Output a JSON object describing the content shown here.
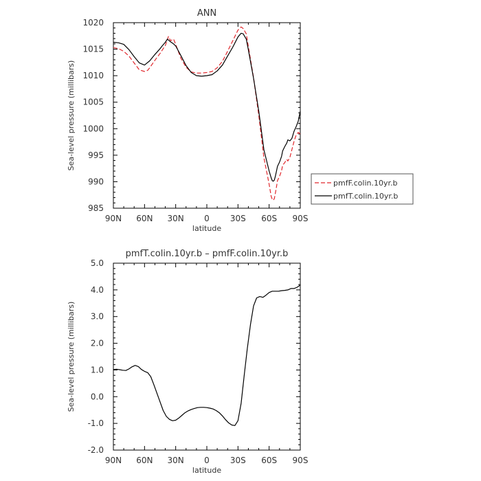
{
  "chart_data": [
    {
      "type": "line",
      "title": "ANN",
      "xlabel": "latitude",
      "ylabel": "Sea-level pressure (millibars)",
      "xlim": [
        90,
        -90
      ],
      "ylim": [
        985,
        1020
      ],
      "yticks": [
        "1020",
        "1015",
        "1010",
        "1005",
        "1000",
        "995",
        "990",
        "985"
      ],
      "xticks": [
        "90N",
        "60N",
        "30N",
        "0",
        "30S",
        "60S",
        "90S"
      ],
      "legend_position": "right",
      "series": [
        {
          "name": "pmfF.colin.10yr.b",
          "color": "#e0262b",
          "dash": true,
          "x": [
            90,
            85,
            80,
            75,
            70,
            65,
            60,
            57,
            55,
            50,
            45,
            43,
            40,
            37,
            35,
            32,
            30,
            25,
            20,
            15,
            10,
            5,
            0,
            -5,
            -10,
            -15,
            -20,
            -25,
            -30,
            -33,
            -35,
            -38,
            -40,
            -45,
            -50,
            -55,
            -60,
            -62,
            -63,
            -64,
            -65,
            -66,
            -67,
            -68,
            -70,
            -72,
            -73,
            -75,
            -77,
            -78,
            -80,
            -82,
            -84,
            -86,
            -88,
            -90
          ],
          "y": [
            1015.3,
            1015.1,
            1014.6,
            1013.7,
            1012.4,
            1011.1,
            1010.8,
            1011.0,
            1011.5,
            1012.9,
            1014.2,
            1014.8,
            1015.7,
            1017.4,
            1016.6,
            1016.9,
            1015.9,
            1013.3,
            1011.6,
            1010.7,
            1010.5,
            1010.5,
            1010.6,
            1010.8,
            1011.5,
            1012.7,
            1014.6,
            1016.6,
            1018.6,
            1019.2,
            1018.9,
            1017.9,
            1015.5,
            1009.6,
            1002.5,
            994.5,
            989.5,
            987.2,
            986.7,
            986.5,
            986.8,
            987.8,
            988.9,
            990.2,
            991.0,
            992.1,
            993.1,
            993.6,
            994.2,
            993.9,
            994.6,
            996.1,
            997.6,
            998.8,
            999.3,
            999.0
          ]
        },
        {
          "name": "pmfT.colin.10yr.b",
          "color": "#000000",
          "dash": false,
          "x": [
            90,
            85,
            80,
            75,
            70,
            65,
            60,
            55,
            50,
            45,
            43,
            40,
            38,
            35,
            32,
            30,
            25,
            20,
            15,
            10,
            5,
            0,
            -5,
            -10,
            -15,
            -20,
            -25,
            -30,
            -33,
            -35,
            -38,
            -40,
            -45,
            -50,
            -55,
            -60,
            -62,
            -63,
            -64,
            -65,
            -66,
            -67,
            -68,
            -70,
            -72,
            -73,
            -75,
            -77,
            -78,
            -80,
            -82,
            -84,
            -86,
            -88,
            -90
          ],
          "y": [
            1016.3,
            1016.2,
            1015.9,
            1014.9,
            1013.6,
            1012.4,
            1012.0,
            1012.8,
            1014.0,
            1015.1,
            1015.6,
            1016.3,
            1016.9,
            1016.4,
            1016.0,
            1015.6,
            1013.8,
            1011.9,
            1010.6,
            1010.0,
            1009.9,
            1010.0,
            1010.2,
            1010.9,
            1012.0,
            1013.7,
            1015.4,
            1017.3,
            1018.0,
            1017.9,
            1016.9,
            1014.9,
            1009.5,
            1003.3,
            996.0,
            992.0,
            990.7,
            990.2,
            990.1,
            990.3,
            991.0,
            991.9,
            992.9,
            993.7,
            994.8,
            995.8,
            996.6,
            997.3,
            997.9,
            997.7,
            998.2,
            999.5,
            1000.4,
            1001.4,
            1003.3
          ]
        }
      ]
    },
    {
      "type": "line",
      "title": "pmfT.colin.10yr.b – pmfF.colin.10yr.b",
      "xlabel": "latitude",
      "ylabel": "Sea-level pressure (millibars)",
      "xlim": [
        90,
        -90
      ],
      "ylim": [
        -2.0,
        5.0
      ],
      "yticks": [
        "5.0",
        "4.0",
        "3.0",
        "2.0",
        "1.0",
        "0.0",
        "-1.0",
        "-2.0"
      ],
      "xticks": [
        "90N",
        "60N",
        "30N",
        "0",
        "30S",
        "60S",
        "90S"
      ],
      "series": [
        {
          "color": "#000000",
          "dash": false,
          "x": [
            90,
            87,
            84,
            81,
            78,
            75,
            72,
            69,
            66,
            63,
            60,
            57,
            54,
            51,
            48,
            45,
            42,
            39,
            36,
            33,
            30,
            27,
            24,
            21,
            18,
            15,
            12,
            9,
            6,
            3,
            0,
            -3,
            -6,
            -9,
            -12,
            -15,
            -18,
            -21,
            -24,
            -27,
            -30,
            -33,
            -36,
            -39,
            -42,
            -45,
            -48,
            -51,
            -54,
            -57,
            -60,
            -63,
            -66,
            -69,
            -72,
            -75,
            -78,
            -81,
            -84,
            -87,
            -90
          ],
          "y": [
            1.02,
            1.03,
            1.01,
            0.99,
            0.98,
            1.04,
            1.12,
            1.17,
            1.13,
            1.02,
            0.95,
            0.9,
            0.75,
            0.45,
            0.12,
            -0.2,
            -0.52,
            -0.74,
            -0.85,
            -0.9,
            -0.88,
            -0.8,
            -0.7,
            -0.6,
            -0.53,
            -0.48,
            -0.44,
            -0.41,
            -0.4,
            -0.4,
            -0.41,
            -0.43,
            -0.46,
            -0.52,
            -0.6,
            -0.72,
            -0.86,
            -0.98,
            -1.06,
            -1.08,
            -0.9,
            -0.25,
            0.8,
            1.8,
            2.7,
            3.4,
            3.7,
            3.75,
            3.72,
            3.8,
            3.9,
            3.95,
            3.95,
            3.95,
            3.97,
            3.98,
            4.0,
            4.05,
            4.05,
            4.1,
            4.18
          ]
        }
      ]
    }
  ]
}
